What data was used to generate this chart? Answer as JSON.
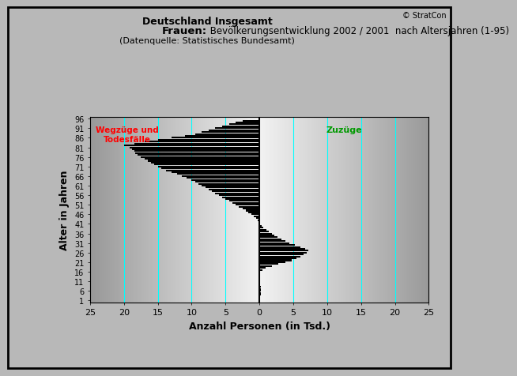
{
  "title_top": "Deutschland Insgesamt",
  "title_main_bold": "Frauen:",
  "title_main_rest": " Bevölkerungsentwicklung 2002 / 2001  nach Altersjahren (1-95)",
  "title_sub": "(Datenquelle: Statistisches Bundesamt)",
  "copyright": "© StratCon",
  "xlabel": "Anzahl Personen (in Tsd.)",
  "ylabel": "Alter in Jahren",
  "xlim": [
    -25,
    25
  ],
  "ylim": [
    0.0,
    97.0
  ],
  "label_wegzuege": "Wegzüge und\nTodesfälle",
  "label_zuzuege": "Zuzüge",
  "label_wegzuege_color": "#ff0000",
  "label_zuzuege_color": "#009900",
  "bar_color": "#000000",
  "outer_bg_color": "#b8b8b8",
  "cyan_color": "#00ffff",
  "cyan_lines_x": [
    -20,
    -15,
    -10,
    -5,
    5,
    10,
    15,
    20
  ],
  "xticks": [
    -25,
    -20,
    -15,
    -10,
    -5,
    0,
    5,
    10,
    15,
    20,
    25
  ],
  "xtick_labels": [
    "25",
    "20",
    "15",
    "10",
    "5",
    "0",
    "5",
    "10",
    "15",
    "20",
    "25"
  ],
  "yticks": [
    1,
    6,
    11,
    16,
    21,
    26,
    31,
    36,
    41,
    46,
    51,
    56,
    61,
    66,
    71,
    76,
    81,
    86,
    91,
    96
  ],
  "values_ages1_to_95": [
    0.1,
    0.12,
    0.15,
    0.18,
    0.2,
    0.22,
    0.2,
    0.18,
    0.15,
    0.12,
    0.1,
    0.08,
    0.06,
    0.05,
    0.04,
    0.1,
    0.4,
    0.9,
    1.8,
    2.8,
    3.8,
    4.8,
    5.5,
    6.0,
    6.5,
    7.0,
    7.2,
    6.8,
    6.0,
    5.2,
    4.4,
    3.8,
    3.2,
    2.7,
    2.2,
    1.8,
    1.4,
    1.0,
    0.6,
    0.3,
    0.1,
    -0.1,
    -0.3,
    -0.5,
    -0.8,
    -1.2,
    -1.6,
    -2.0,
    -2.5,
    -3.0,
    -3.5,
    -4.0,
    -4.5,
    -5.0,
    -5.5,
    -6.0,
    -6.5,
    -7.0,
    -7.5,
    -8.0,
    -8.5,
    -9.0,
    -9.5,
    -10.0,
    -10.8,
    -11.5,
    -12.2,
    -13.0,
    -13.8,
    -14.5,
    -15.0,
    -15.5,
    -16.0,
    -16.5,
    -17.0,
    -17.5,
    -18.0,
    -18.3,
    -18.5,
    -18.8,
    -19.2,
    -20.0,
    -18.5,
    -17.0,
    -15.0,
    -13.0,
    -11.0,
    -9.5,
    -8.5,
    -7.5,
    -6.5,
    -5.5,
    -4.5,
    -3.5,
    -2.5
  ]
}
